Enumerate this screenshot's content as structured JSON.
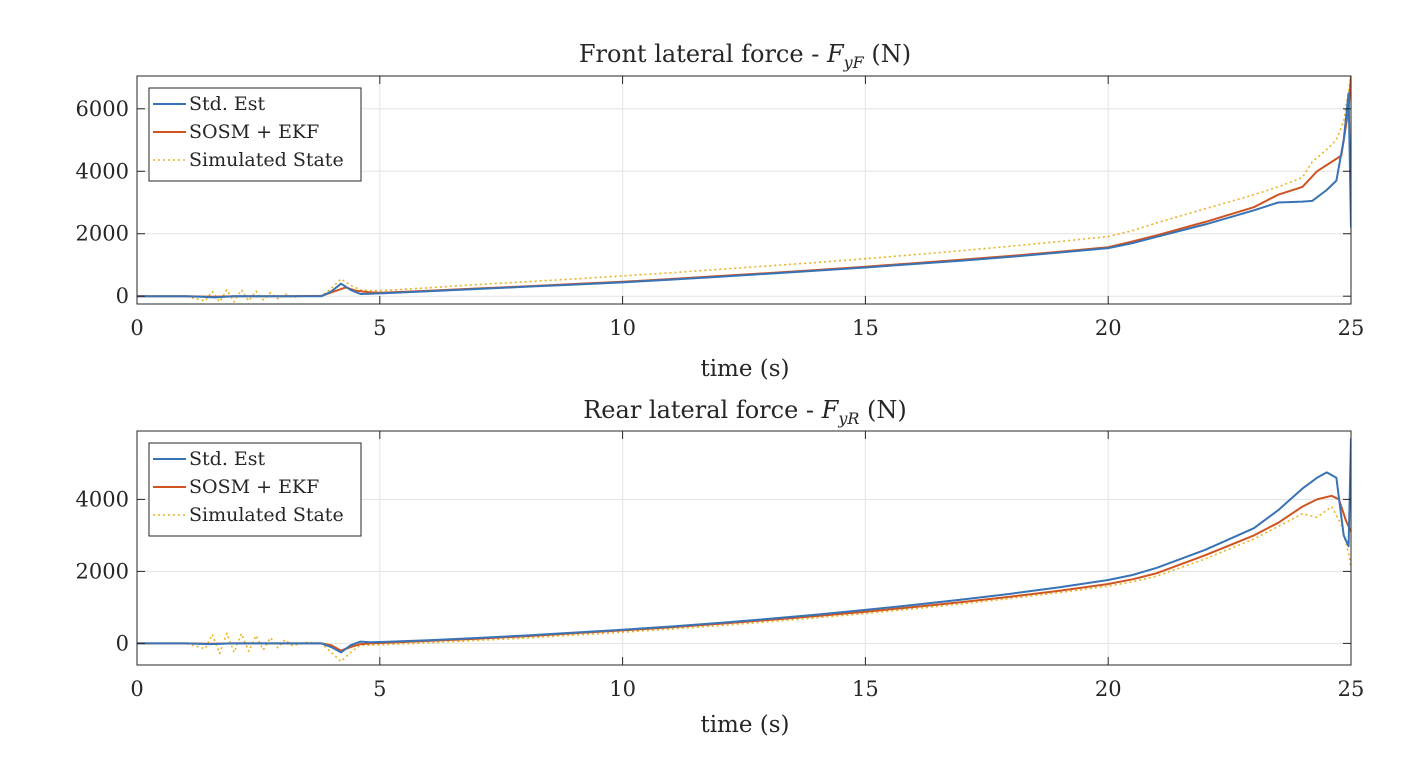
{
  "figure": {
    "colors": {
      "std_est": "#3873B5",
      "sosm_ekf": "#D05420",
      "simulated": "#EDB120",
      "grid": "#E3E3E3",
      "axis": "#262626"
    }
  },
  "chart_data": [
    {
      "type": "line",
      "title": "Front lateral force - F_yF (N)",
      "title_parts": {
        "pre": "Front lateral force - ",
        "var": "F",
        "sub": "yF",
        "post": " (N)"
      },
      "xlabel": "time (s)",
      "ylabel": "",
      "xlim": [
        0,
        25
      ],
      "ylim": [
        -250,
        7050
      ],
      "xticks": [
        0,
        5,
        10,
        15,
        20,
        25
      ],
      "yticks": [
        0,
        2000,
        4000,
        6000
      ],
      "xtick_labels": [
        "0",
        "5",
        "10",
        "15",
        "20",
        "25"
      ],
      "ytick_labels": [
        "0",
        "2000",
        "4000",
        "6000"
      ],
      "grid": true,
      "legend": {
        "placement": "top-left",
        "entries": [
          "Std. Est",
          "SOSM + EKF",
          "Simulated State"
        ]
      },
      "series": [
        {
          "name": "Std. Est",
          "style": "solid",
          "x": [
            0,
            1,
            1.3,
            1.6,
            2,
            3,
            3.8,
            4.0,
            4.2,
            4.4,
            4.6,
            4.8,
            5,
            6,
            7,
            8,
            9,
            10,
            11,
            12,
            13,
            14,
            15,
            16,
            17,
            18,
            19,
            20,
            20.5,
            21,
            22,
            23,
            23.5,
            24,
            24.2,
            24.5,
            24.7,
            24.85,
            24.95,
            25
          ],
          "y": [
            0,
            0,
            -20,
            -40,
            0,
            0,
            0,
            150,
            400,
            200,
            70,
            80,
            90,
            160,
            230,
            300,
            370,
            440,
            530,
            620,
            720,
            820,
            920,
            1030,
            1140,
            1260,
            1400,
            1540,
            1700,
            1900,
            2300,
            2750,
            3000,
            3030,
            3050,
            3400,
            3700,
            5000,
            6500,
            2200
          ]
        },
        {
          "name": "SOSM + EKF",
          "style": "solid",
          "x": [
            0,
            1,
            1.3,
            1.6,
            2,
            3,
            3.8,
            4.0,
            4.3,
            4.5,
            4.8,
            5,
            6,
            7,
            8,
            9,
            10,
            11,
            12,
            13,
            14,
            15,
            16,
            17,
            18,
            19,
            20,
            20.5,
            21,
            22,
            23,
            23.5,
            24,
            24.3,
            24.6,
            24.8,
            24.95,
            25
          ],
          "y": [
            0,
            0,
            -10,
            -20,
            0,
            0,
            10,
            120,
            280,
            180,
            120,
            110,
            175,
            245,
            315,
            390,
            460,
            550,
            645,
            740,
            840,
            945,
            1055,
            1170,
            1290,
            1420,
            1570,
            1750,
            1950,
            2380,
            2850,
            3250,
            3500,
            4000,
            4300,
            4500,
            6000,
            7050
          ]
        },
        {
          "name": "Simulated State",
          "style": "dotted",
          "x": [
            0,
            1,
            1.4,
            1.55,
            1.7,
            1.85,
            2.0,
            2.15,
            2.3,
            2.45,
            2.6,
            2.75,
            2.9,
            3.05,
            3.2,
            3.5,
            3.8,
            4.0,
            4.2,
            4.4,
            4.6,
            4.8,
            5,
            6,
            7,
            8,
            9,
            10,
            11,
            12,
            13,
            14,
            15,
            16,
            17,
            18,
            19,
            20,
            20.5,
            21,
            22,
            23,
            23.5,
            24,
            24.2,
            24.5,
            24.7,
            24.85,
            25
          ],
          "y": [
            0,
            0,
            -150,
            150,
            -180,
            200,
            -180,
            200,
            -150,
            160,
            -120,
            110,
            -80,
            70,
            -40,
            20,
            0,
            250,
            550,
            350,
            200,
            180,
            175,
            270,
            370,
            460,
            550,
            650,
            750,
            860,
            970,
            1080,
            1200,
            1330,
            1460,
            1600,
            1750,
            1910,
            2100,
            2350,
            2800,
            3250,
            3500,
            3800,
            4300,
            4700,
            5000,
            5600,
            7050
          ]
        }
      ]
    },
    {
      "type": "line",
      "title": "Rear lateral force - F_yR (N)",
      "title_parts": {
        "pre": "Rear lateral force - ",
        "var": "F",
        "sub": "yR",
        "post": " (N)"
      },
      "xlabel": "time (s)",
      "ylabel": "",
      "xlim": [
        0,
        25
      ],
      "ylim": [
        -600,
        5900
      ],
      "xticks": [
        0,
        5,
        10,
        15,
        20,
        25
      ],
      "yticks": [
        0,
        2000,
        4000
      ],
      "xtick_labels": [
        "0",
        "5",
        "10",
        "15",
        "20",
        "25"
      ],
      "ytick_labels": [
        "0",
        "2000",
        "4000"
      ],
      "grid": true,
      "legend": {
        "placement": "top-left",
        "entries": [
          "Std. Est",
          "SOSM + EKF",
          "Simulated State"
        ]
      },
      "series": [
        {
          "name": "Std. Est",
          "style": "solid",
          "x": [
            0,
            1,
            1.5,
            2,
            3,
            3.8,
            4.0,
            4.2,
            4.4,
            4.6,
            4.8,
            5,
            6,
            7,
            8,
            9,
            10,
            11,
            12,
            13,
            14,
            15,
            16,
            17,
            18,
            19,
            20,
            20.5,
            21,
            22,
            23,
            23.5,
            24,
            24.3,
            24.5,
            24.7,
            24.85,
            24.95,
            25
          ],
          "y": [
            0,
            0,
            -20,
            0,
            0,
            0,
            -100,
            -250,
            -50,
            50,
            30,
            40,
            90,
            150,
            220,
            300,
            380,
            470,
            570,
            680,
            800,
            930,
            1070,
            1220,
            1380,
            1560,
            1760,
            1900,
            2100,
            2600,
            3200,
            3700,
            4300,
            4600,
            4750,
            4600,
            3000,
            2700,
            5700
          ]
        },
        {
          "name": "SOSM + EKF",
          "style": "solid",
          "x": [
            0,
            1,
            1.5,
            2,
            3,
            3.8,
            4.0,
            4.2,
            4.4,
            4.6,
            4.8,
            5,
            6,
            7,
            8,
            9,
            10,
            11,
            12,
            13,
            14,
            15,
            16,
            17,
            18,
            19,
            20,
            20.5,
            21,
            22,
            23,
            23.5,
            24,
            24.3,
            24.6,
            24.75,
            24.9,
            25
          ],
          "y": [
            0,
            0,
            -10,
            0,
            0,
            0,
            -50,
            -200,
            -100,
            -20,
            0,
            10,
            70,
            130,
            200,
            280,
            360,
            450,
            545,
            650,
            760,
            880,
            1010,
            1150,
            1300,
            1460,
            1650,
            1780,
            1950,
            2450,
            3000,
            3350,
            3800,
            4000,
            4100,
            4000,
            3400,
            3100
          ]
        },
        {
          "name": "Simulated State",
          "style": "dotted",
          "x": [
            0,
            1,
            1.4,
            1.55,
            1.7,
            1.85,
            2.0,
            2.15,
            2.3,
            2.45,
            2.6,
            2.75,
            2.9,
            3.05,
            3.2,
            3.5,
            3.8,
            4.0,
            4.2,
            4.4,
            4.6,
            4.8,
            5,
            6,
            7,
            8,
            9,
            10,
            11,
            12,
            13,
            14,
            15,
            16,
            17,
            18,
            19,
            20,
            20.5,
            21,
            22,
            23,
            23.5,
            24,
            24.3,
            24.6,
            24.8,
            24.95,
            25
          ],
          "y": [
            0,
            0,
            -150,
            250,
            -280,
            280,
            -250,
            270,
            -220,
            220,
            -180,
            160,
            -120,
            100,
            -60,
            30,
            0,
            -250,
            -500,
            -250,
            -50,
            -50,
            -40,
            20,
            80,
            150,
            230,
            310,
            400,
            495,
            600,
            710,
            830,
            960,
            1100,
            1250,
            1410,
            1590,
            1710,
            1870,
            2350,
            2900,
            3250,
            3600,
            3500,
            3800,
            3300,
            2500,
            2100
          ]
        }
      ]
    }
  ]
}
